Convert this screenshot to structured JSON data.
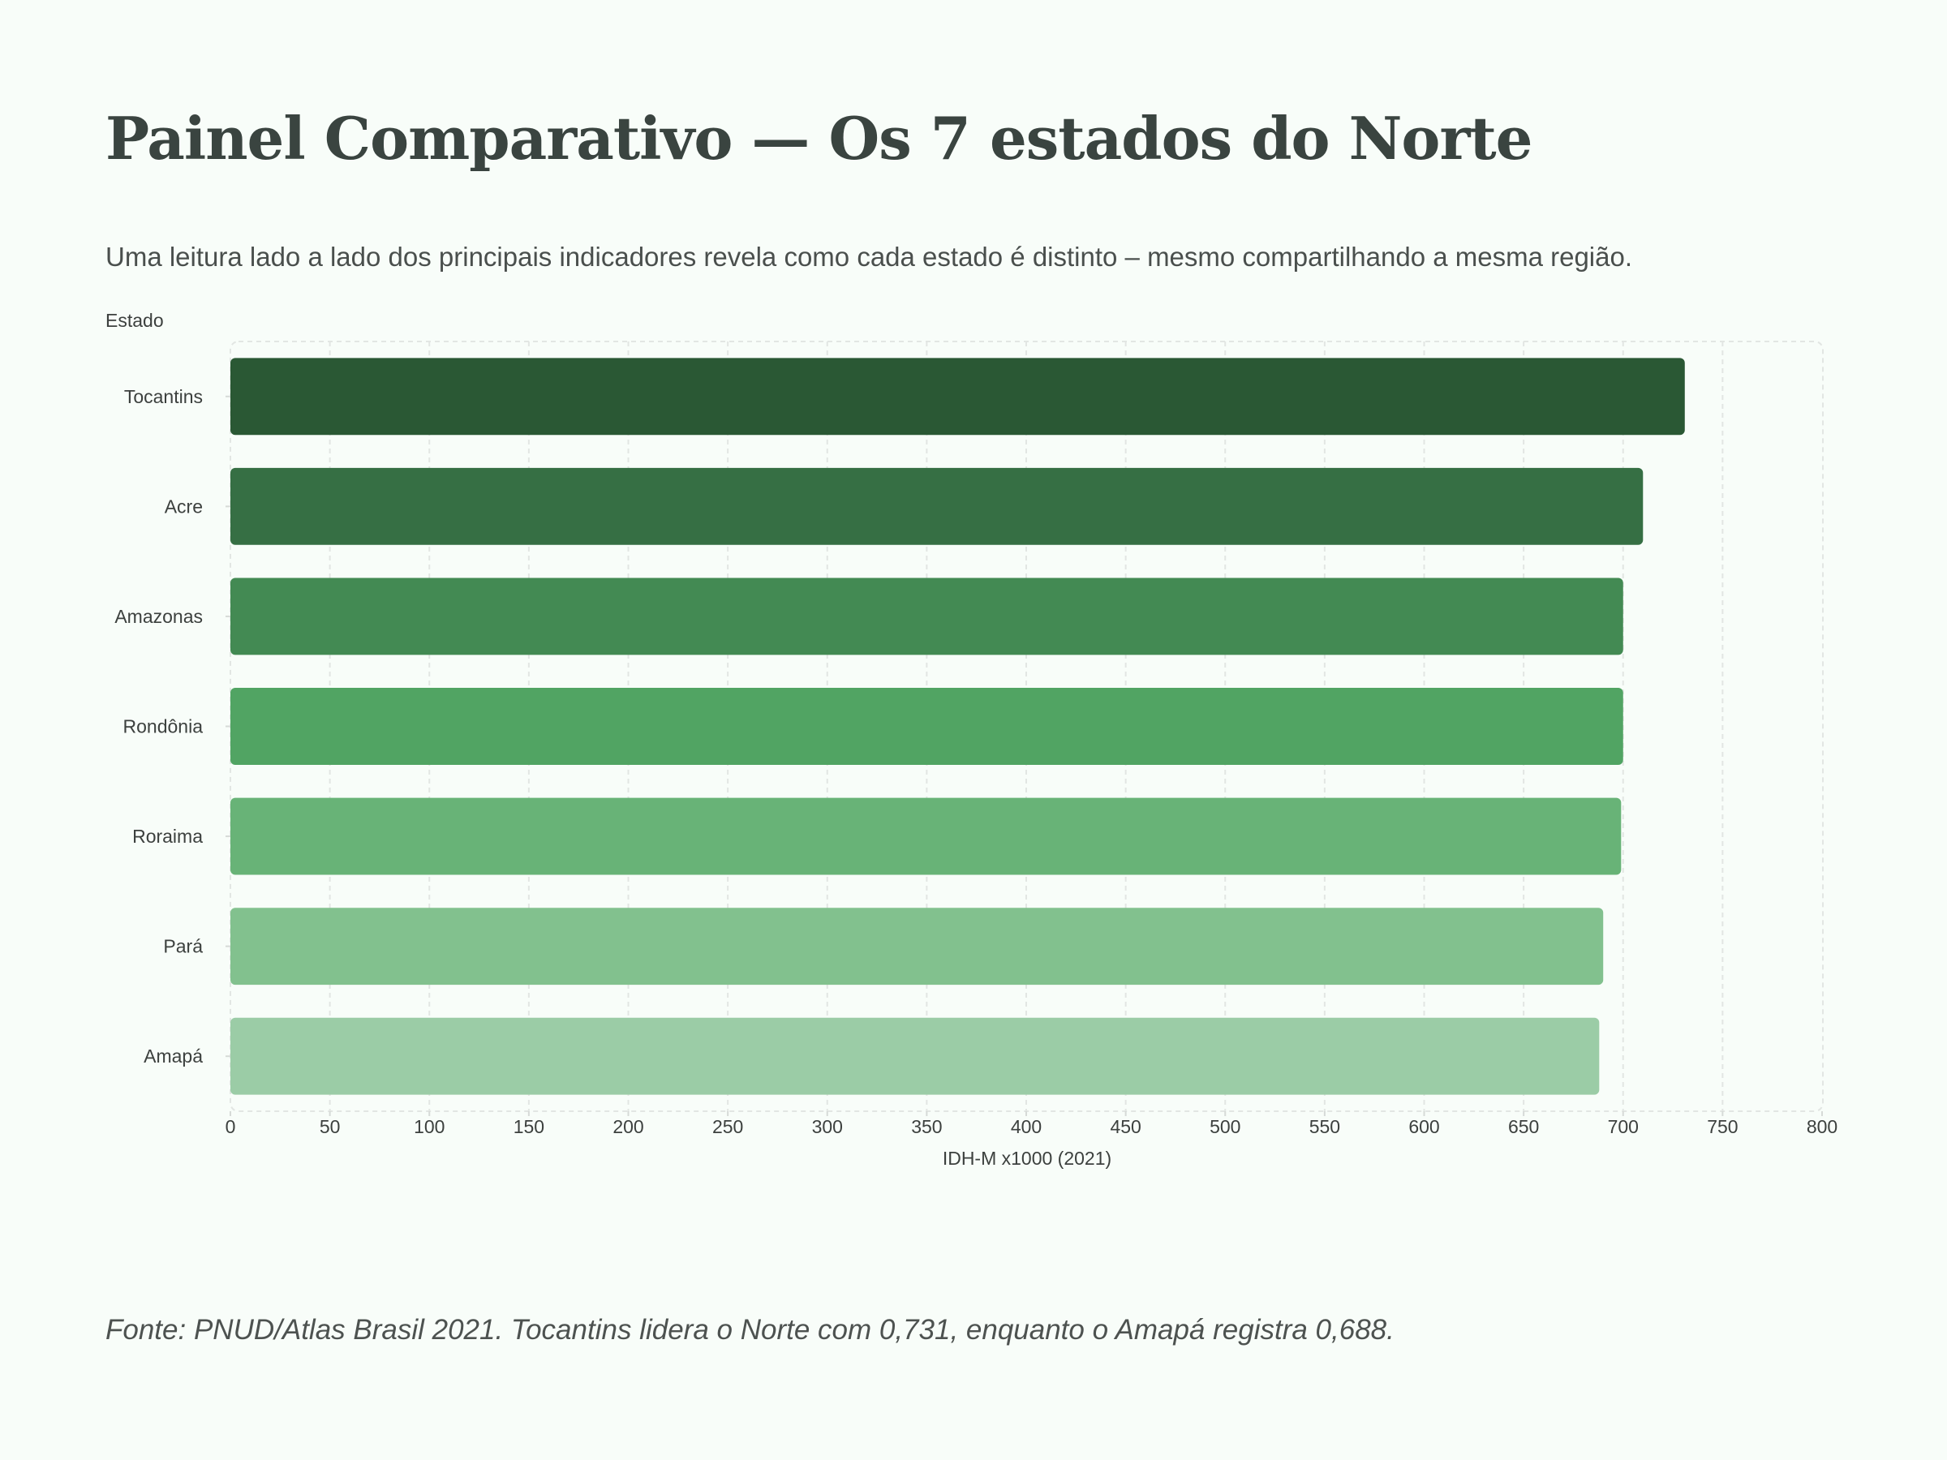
{
  "page": {
    "title": "Painel Comparativo — Os 7 estados do Norte",
    "subtitle": "Uma leitura lado a lado dos principais indicadores revela como cada estado é distinto – mesmo compartilhando a mesma região.",
    "footer_note": "Fonte: PNUD/Atlas Brasil 2021. Tocantins lidera o Norte com 0,731, enquanto o Amapá registra 0,688."
  },
  "chart_data": {
    "type": "bar",
    "orientation": "horizontal",
    "categories": [
      "Tocantins",
      "Acre",
      "Amazonas",
      "Rondônia",
      "Roraima",
      "Pará",
      "Amapá"
    ],
    "values": [
      731,
      710,
      700,
      700,
      699,
      690,
      688
    ],
    "colors": [
      "#2a5834",
      "#366f44",
      "#438a53",
      "#51a463",
      "#68b377",
      "#82c18e",
      "#9bcca6"
    ],
    "ylabel": "Estado",
    "xlabel": "IDH-M x1000 (2021)",
    "xlim": [
      0,
      800
    ],
    "xticks": [
      "0",
      "50",
      "100",
      "150",
      "200",
      "250",
      "300",
      "350",
      "400",
      "450",
      "500",
      "550",
      "600",
      "650",
      "700",
      "750",
      "800"
    ],
    "grid": true
  }
}
